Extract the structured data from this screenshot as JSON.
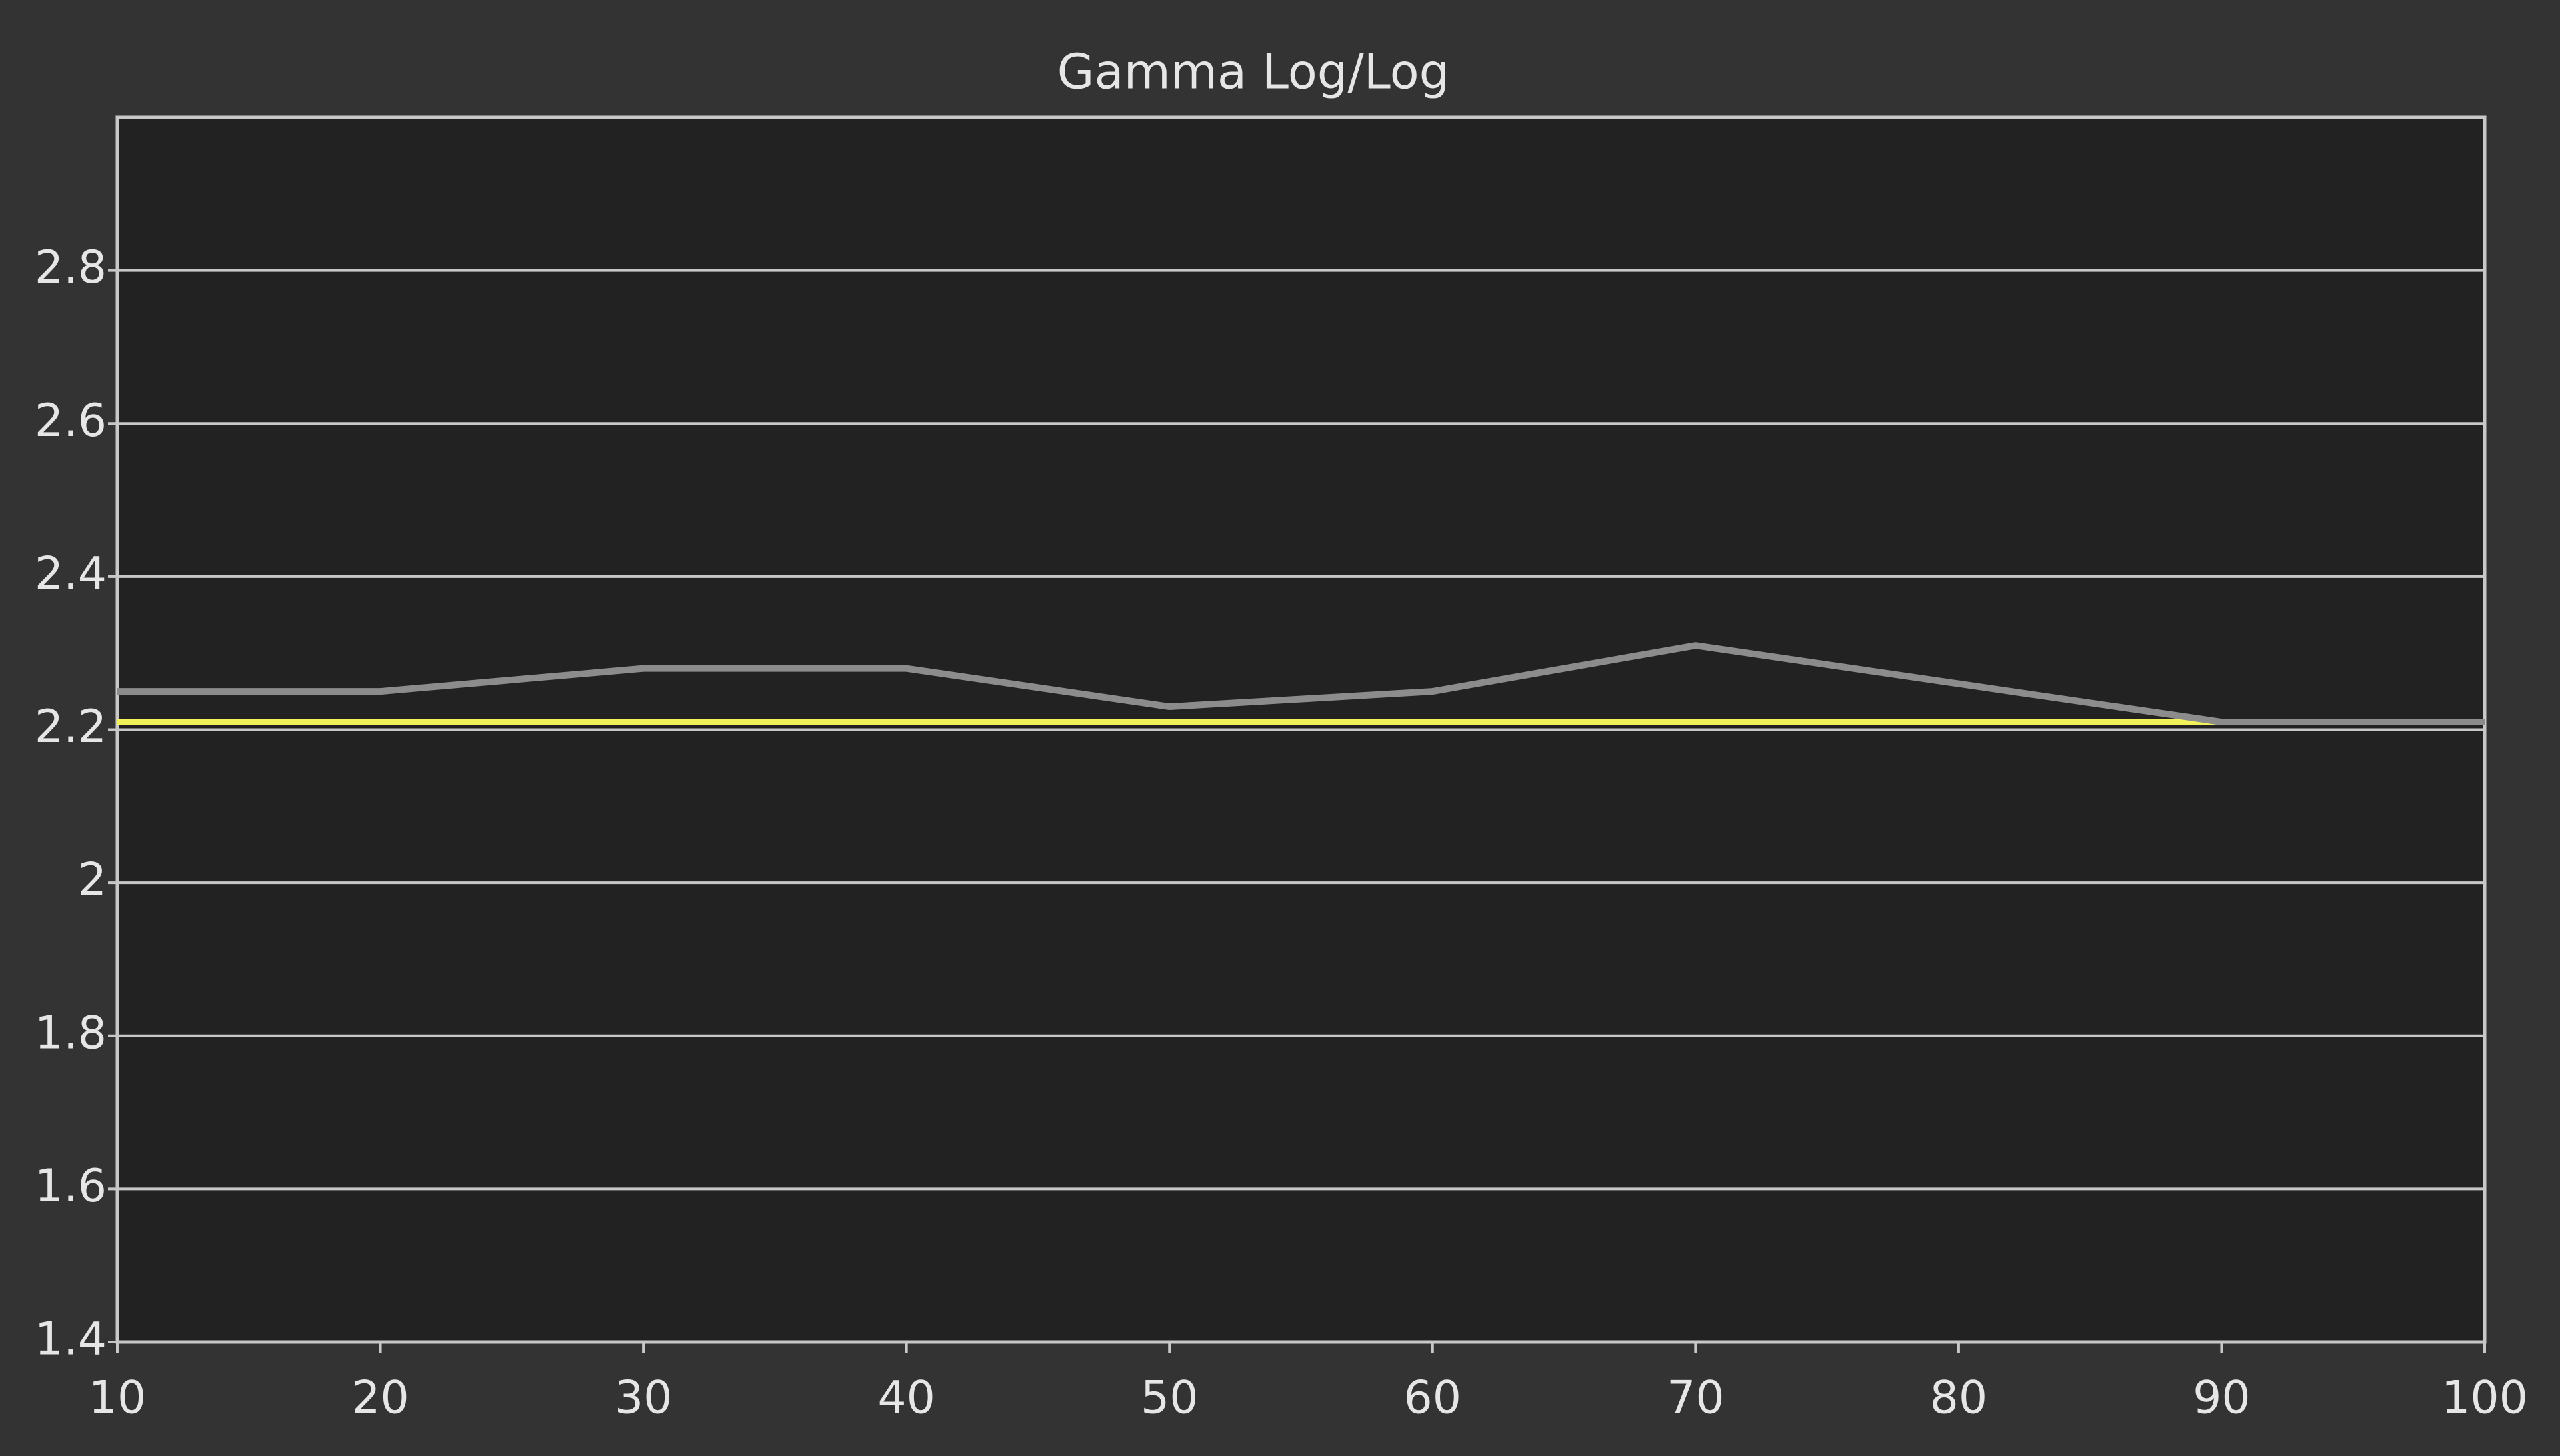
{
  "chart_data": {
    "type": "line",
    "title": "Gamma Log/Log",
    "x": [
      10,
      20,
      30,
      40,
      50,
      60,
      70,
      80,
      90,
      100
    ],
    "series": [
      {
        "color": "#f2f25a",
        "values": [
          2.21,
          2.21,
          2.21,
          2.21,
          2.21,
          2.21,
          2.21,
          2.21,
          2.21,
          2.21
        ]
      },
      {
        "color": "#8c8c8c",
        "values": [
          2.25,
          2.25,
          2.28,
          2.28,
          2.23,
          2.25,
          2.31,
          2.26,
          2.21,
          2.21
        ]
      }
    ],
    "xlim": [
      10,
      100
    ],
    "xticks": [
      10,
      20,
      30,
      40,
      50,
      60,
      70,
      80,
      90,
      100
    ],
    "ylim": [
      1.4,
      3.0
    ],
    "yticks": [
      1.4,
      1.6,
      1.8,
      2,
      2.2,
      2.4,
      2.6,
      2.8
    ],
    "grid": true
  }
}
